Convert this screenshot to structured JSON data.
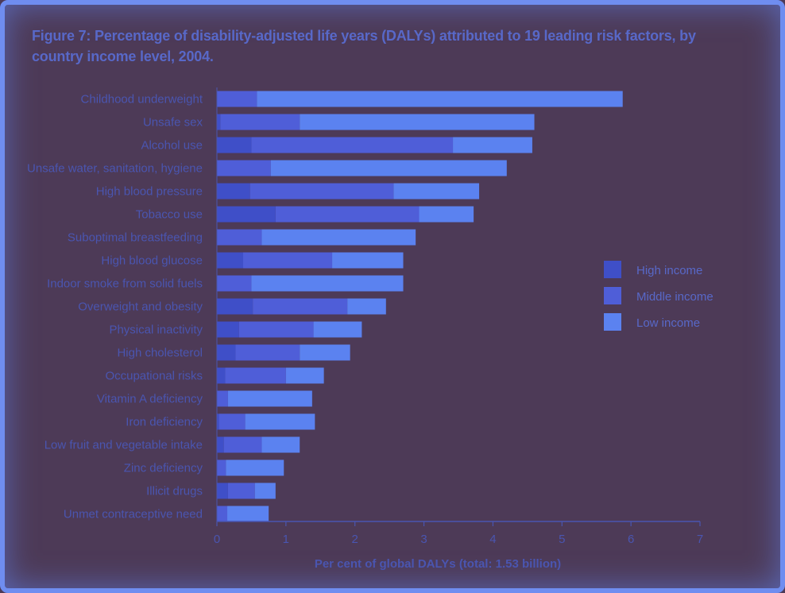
{
  "chart_data": {
    "type": "bar",
    "orientation": "horizontal",
    "stacked": true,
    "title": "Figure 7: Percentage of disability-adjusted life years (DALYs) attributed to 19 leading risk factors, by country income level, 2004.",
    "xlabel": "Per cent of global DALYs (total: 1.53 billion)",
    "ylabel": "",
    "xlim": [
      0,
      7
    ],
    "xticks": [
      0,
      1,
      2,
      3,
      4,
      5,
      6,
      7
    ],
    "legend_position": "right",
    "categories": [
      "Childhood underweight",
      "Unsafe sex",
      "Alcohol use",
      "Unsafe water, sanitation, hygiene",
      "High blood pressure",
      "Tobacco use",
      "Suboptimal breastfeeding",
      "High blood glucose",
      "Indoor smoke from solid fuels",
      "Overweight and obesity",
      "Physical inactivity",
      "High cholesterol",
      "Occupational risks",
      "Vitamin A deficiency",
      "Iron deficiency",
      "Low fruit and vegetable intake",
      "Zinc deficiency",
      "Illicit drugs",
      "Unmet contraceptive need"
    ],
    "series": [
      {
        "name": "High income",
        "color": "#3f4fc8",
        "values": [
          0.0,
          0.05,
          0.5,
          0.0,
          0.48,
          0.85,
          0.0,
          0.38,
          0.0,
          0.52,
          0.32,
          0.27,
          0.12,
          0.0,
          0.03,
          0.1,
          0.0,
          0.16,
          0.0
        ]
      },
      {
        "name": "Middle income",
        "color": "#4f5ed8",
        "values": [
          0.58,
          1.15,
          2.92,
          0.78,
          2.08,
          2.08,
          0.65,
          1.29,
          0.5,
          1.37,
          1.08,
          0.93,
          0.88,
          0.16,
          0.38,
          0.55,
          0.13,
          0.39,
          0.15
        ]
      },
      {
        "name": "Low income",
        "color": "#5b82f0",
        "values": [
          5.3,
          3.4,
          1.15,
          3.42,
          1.24,
          0.79,
          2.23,
          1.03,
          2.2,
          0.56,
          0.7,
          0.73,
          0.55,
          1.22,
          1.01,
          0.55,
          0.84,
          0.3,
          0.6
        ]
      }
    ]
  }
}
